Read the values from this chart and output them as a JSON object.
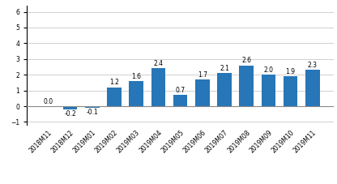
{
  "categories": [
    "2018M11",
    "2018M12",
    "2019M01",
    "2019M02",
    "2019M03",
    "2019M04",
    "2019M05",
    "2019M06",
    "2019M07",
    "2019M08",
    "2019M09",
    "2019M10",
    "2019M11"
  ],
  "values": [
    0.0,
    -0.2,
    -0.1,
    1.2,
    1.6,
    2.4,
    0.7,
    1.7,
    2.1,
    2.6,
    2.0,
    1.9,
    2.3
  ],
  "bar_color": "#2676b8",
  "ylim": [
    -1.2,
    6.4
  ],
  "yticks": [
    -1,
    0,
    1,
    2,
    3,
    4,
    5,
    6
  ],
  "label_fontsize": 5.5,
  "tick_fontsize": 5.5,
  "background_color": "#ffffff",
  "grid_color": "#d0d0d0"
}
